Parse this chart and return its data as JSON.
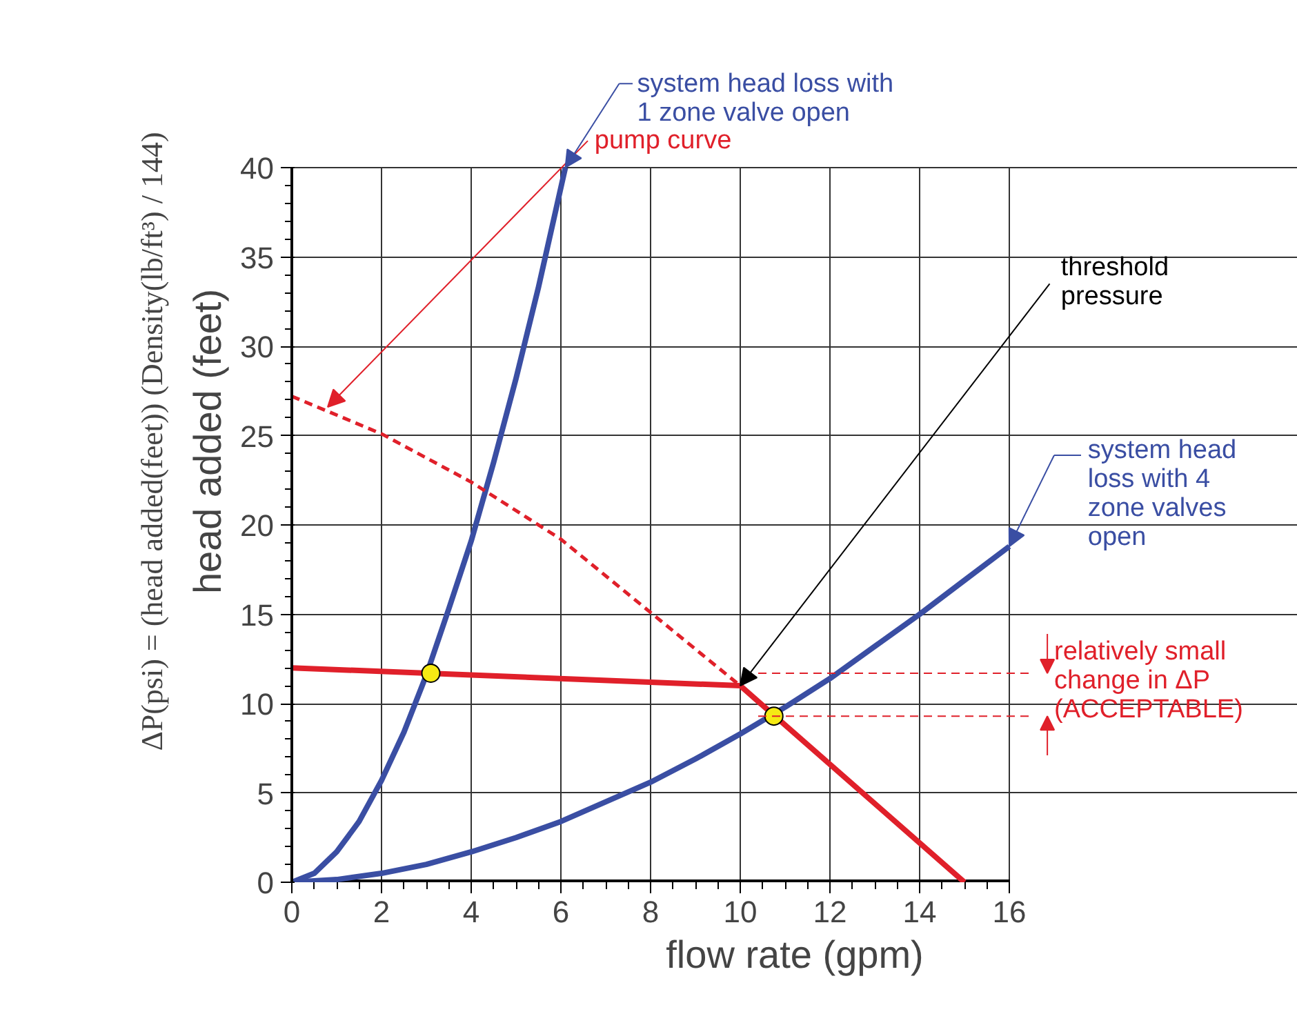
{
  "chart_data": {
    "type": "line",
    "xlabel": "flow rate (gpm)",
    "ylabel": "head added (feet)",
    "xlim": [
      0,
      16
    ],
    "ylim": [
      0,
      40
    ],
    "xticks": [
      0,
      {
        "value": 0.5,
        "label": null
      },
      {
        "value": 1,
        "label": null
      },
      {
        "value": 1.5,
        "label": null
      },
      2,
      {
        "value": 2.5,
        "label": null
      },
      {
        "value": 3,
        "label": null
      },
      {
        "value": 3.5,
        "label": null
      },
      4,
      {
        "value": 4.5,
        "label": null
      },
      {
        "value": 5,
        "label": null
      },
      {
        "value": 5.5,
        "label": null
      },
      6,
      {
        "value": 6.5,
        "label": null
      },
      {
        "value": 7,
        "label": null
      },
      {
        "value": 7.5,
        "label": null
      },
      8,
      {
        "value": 8.5,
        "label": null
      },
      {
        "value": 9,
        "label": null
      },
      {
        "value": 9.5,
        "label": null
      },
      10,
      {
        "value": 10.5,
        "label": null
      },
      {
        "value": 11,
        "label": null
      },
      {
        "value": 11.5,
        "label": null
      },
      12,
      {
        "value": 12.5,
        "label": null
      },
      {
        "value": 13,
        "label": null
      },
      {
        "value": 13.5,
        "label": null
      },
      14,
      {
        "value": 14.5,
        "label": null
      },
      {
        "value": 15,
        "label": null
      },
      {
        "value": 15.5,
        "label": null
      },
      16
    ],
    "yticks": [
      0,
      {
        "value": 1,
        "label": null
      },
      {
        "value": 2,
        "label": null
      },
      {
        "value": 3,
        "label": null
      },
      {
        "value": 4,
        "label": null
      },
      5,
      {
        "value": 6,
        "label": null
      },
      {
        "value": 7,
        "label": null
      },
      {
        "value": 8,
        "label": null
      },
      {
        "value": 9,
        "label": null
      },
      10,
      {
        "value": 11,
        "label": null
      },
      {
        "value": 12,
        "label": null
      },
      {
        "value": 13,
        "label": null
      },
      {
        "value": 14,
        "label": null
      },
      15,
      {
        "value": 16,
        "label": null
      },
      {
        "value": 17,
        "label": null
      },
      {
        "value": 18,
        "label": null
      },
      {
        "value": 19,
        "label": null
      },
      20,
      {
        "value": 21,
        "label": null
      },
      {
        "value": 22,
        "label": null
      },
      {
        "value": 23,
        "label": null
      },
      {
        "value": 24,
        "label": null
      },
      25,
      {
        "value": 26,
        "label": null
      },
      {
        "value": 27,
        "label": null
      },
      {
        "value": 28,
        "label": null
      },
      {
        "value": 29,
        "label": null
      },
      30,
      {
        "value": 31,
        "label": null
      },
      {
        "value": 32,
        "label": null
      },
      {
        "value": 33,
        "label": null
      },
      {
        "value": 34,
        "label": null
      },
      35,
      {
        "value": 36,
        "label": null
      },
      {
        "value": 37,
        "label": null
      },
      {
        "value": 38,
        "label": null
      },
      {
        "value": 39,
        "label": null
      },
      40
    ],
    "grid": true,
    "line_style": "solid",
    "series": [
      {
        "type": "line",
        "color": "#3a4ea3",
        "x": [
          0,
          0.5,
          1,
          1.5,
          2,
          2.5,
          3,
          3.5,
          4,
          4.5,
          5,
          5.5,
          6.1
        ],
        "values": [
          0,
          0.5,
          1.7,
          3.4,
          5.7,
          8.4,
          11.6,
          15.3,
          19.1,
          23.5,
          28.2,
          33.3,
          40
        ]
      },
      {
        "type": "line",
        "color": "#3a4ea3",
        "x": [
          0,
          1,
          2,
          3,
          4,
          5,
          6,
          7,
          8,
          9,
          10,
          11,
          12,
          13,
          14,
          15,
          16
        ],
        "values": [
          0,
          0.15,
          0.5,
          1,
          1.7,
          2.5,
          3.4,
          4.5,
          5.6,
          6.9,
          8.3,
          9.8,
          11.4,
          13.2,
          15,
          16.9,
          18.8
        ]
      },
      {
        "type": "line",
        "color": "#e0202a",
        "line_style": "dashed",
        "x": [
          0,
          2,
          4,
          6,
          8,
          10
        ],
        "values": [
          27.2,
          25.1,
          22.4,
          19.2,
          15.1,
          11
        ]
      },
      {
        "type": "line",
        "color": "#e0202a",
        "x": [
          0,
          10,
          15
        ],
        "values": [
          12,
          11,
          0
        ]
      },
      {
        "type": "scatter",
        "marker": "circle",
        "color": "#f5ea14",
        "x": [
          3.1,
          10.75
        ],
        "values": [
          11.7,
          9.3
        ]
      }
    ],
    "ref_lines": [
      {
        "axis": "y",
        "value": 11.7,
        "color": "#e0202a",
        "line_style": "dashed"
      },
      {
        "axis": "y",
        "value": 9.3,
        "color": "#e0202a",
        "line_style": "dashed"
      }
    ],
    "annotations": [
      {
        "text": "pump curve",
        "x": 0.8,
        "y": 26.6
      },
      {
        "text": "system head loss with\n1 zone valve open",
        "x": 6.1,
        "y": 40
      },
      {
        "text": "threshold\npressure",
        "x": 10,
        "y": 11
      },
      {
        "text": "system head\nloss with 4\nzone valves\nopen",
        "x": 16,
        "y": 18.8
      },
      "relatively small\nchange in ΔP\n(ACCEPTABLE)",
      "ΔP(psi) = (head added(feet)) (Density(lb/ft³) / 144)"
    ]
  }
}
